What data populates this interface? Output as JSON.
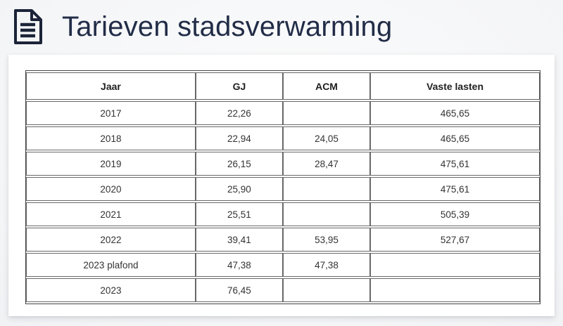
{
  "page": {
    "title": "Tarieven stadsverwarming",
    "icon": "document-icon"
  },
  "chart_data": {
    "type": "table",
    "title": "Tarieven stadsverwarming",
    "columns": [
      "Jaar",
      "GJ",
      "ACM",
      "Vaste lasten"
    ],
    "rows": [
      [
        "2017",
        "22,26",
        "",
        "465,65"
      ],
      [
        "2018",
        "22,94",
        "24,05",
        "465,65"
      ],
      [
        "2019",
        "26,15",
        "28,47",
        "475,61"
      ],
      [
        "2020",
        "25,90",
        "",
        "475,61"
      ],
      [
        "2021",
        "25,51",
        "",
        "505,39"
      ],
      [
        "2022",
        "39,41",
        "53,95",
        "527,67"
      ],
      [
        "2023 plafond",
        "47,38",
        "47,38",
        ""
      ],
      [
        "2023",
        "76,45",
        "",
        ""
      ]
    ]
  },
  "colors": {
    "title_text": "#212c47",
    "icon": "#1b2438",
    "table_outer_border": "#454545",
    "table_cell_border": "#686868",
    "header_text": "#1f1f1f",
    "cell_text": "#333333",
    "card_bg": "#ffffff",
    "page_bg_edge": "#e9ebee",
    "page_bg_center": "#fbfcfc"
  }
}
